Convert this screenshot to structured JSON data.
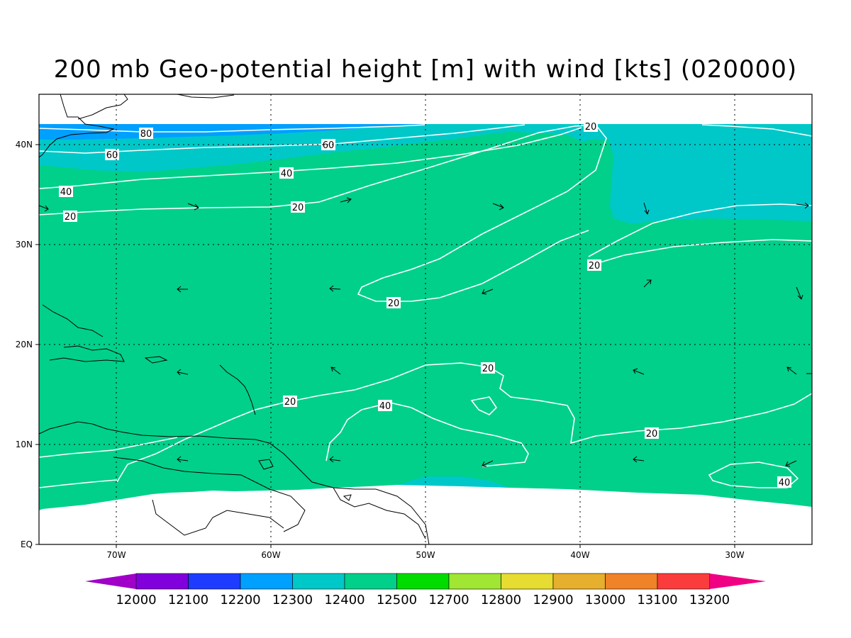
{
  "title": "200 mb Geo-potential height [m] with wind [kts] (020000)",
  "axes": {
    "x_ticks": [
      "70W",
      "60W",
      "50W",
      "40W",
      "30W"
    ],
    "y_ticks": [
      "EQ",
      "10N",
      "20N",
      "30N",
      "40N"
    ]
  },
  "colors": {
    "band_12400": "#00d08a",
    "band_12300": "#00c8c8",
    "band_12200": "#00a0ff",
    "land_outline": "#000000",
    "contour_line": "#ffffff"
  },
  "colorbar": {
    "labels": [
      "12000",
      "12100",
      "12200",
      "12300",
      "12400",
      "12500",
      "12700",
      "12800",
      "12900",
      "13000",
      "13100",
      "13200"
    ],
    "colors": [
      "#a000c8",
      "#8200dc",
      "#1e3cff",
      "#00a0ff",
      "#00c8c8",
      "#00d08a",
      "#00dc00",
      "#a0e632",
      "#e6dc32",
      "#e6af2d",
      "#f08228",
      "#fa3c3c",
      "#f00082"
    ]
  },
  "contour_labels": [
    {
      "text": "80"
    },
    {
      "text": "60"
    },
    {
      "text": "60"
    },
    {
      "text": "40"
    },
    {
      "text": "40"
    },
    {
      "text": "20"
    },
    {
      "text": "20"
    },
    {
      "text": "20"
    },
    {
      "text": "20"
    },
    {
      "text": "20"
    },
    {
      "text": "20"
    },
    {
      "text": "20"
    },
    {
      "text": "40"
    },
    {
      "text": "20"
    },
    {
      "text": "40"
    }
  ]
}
